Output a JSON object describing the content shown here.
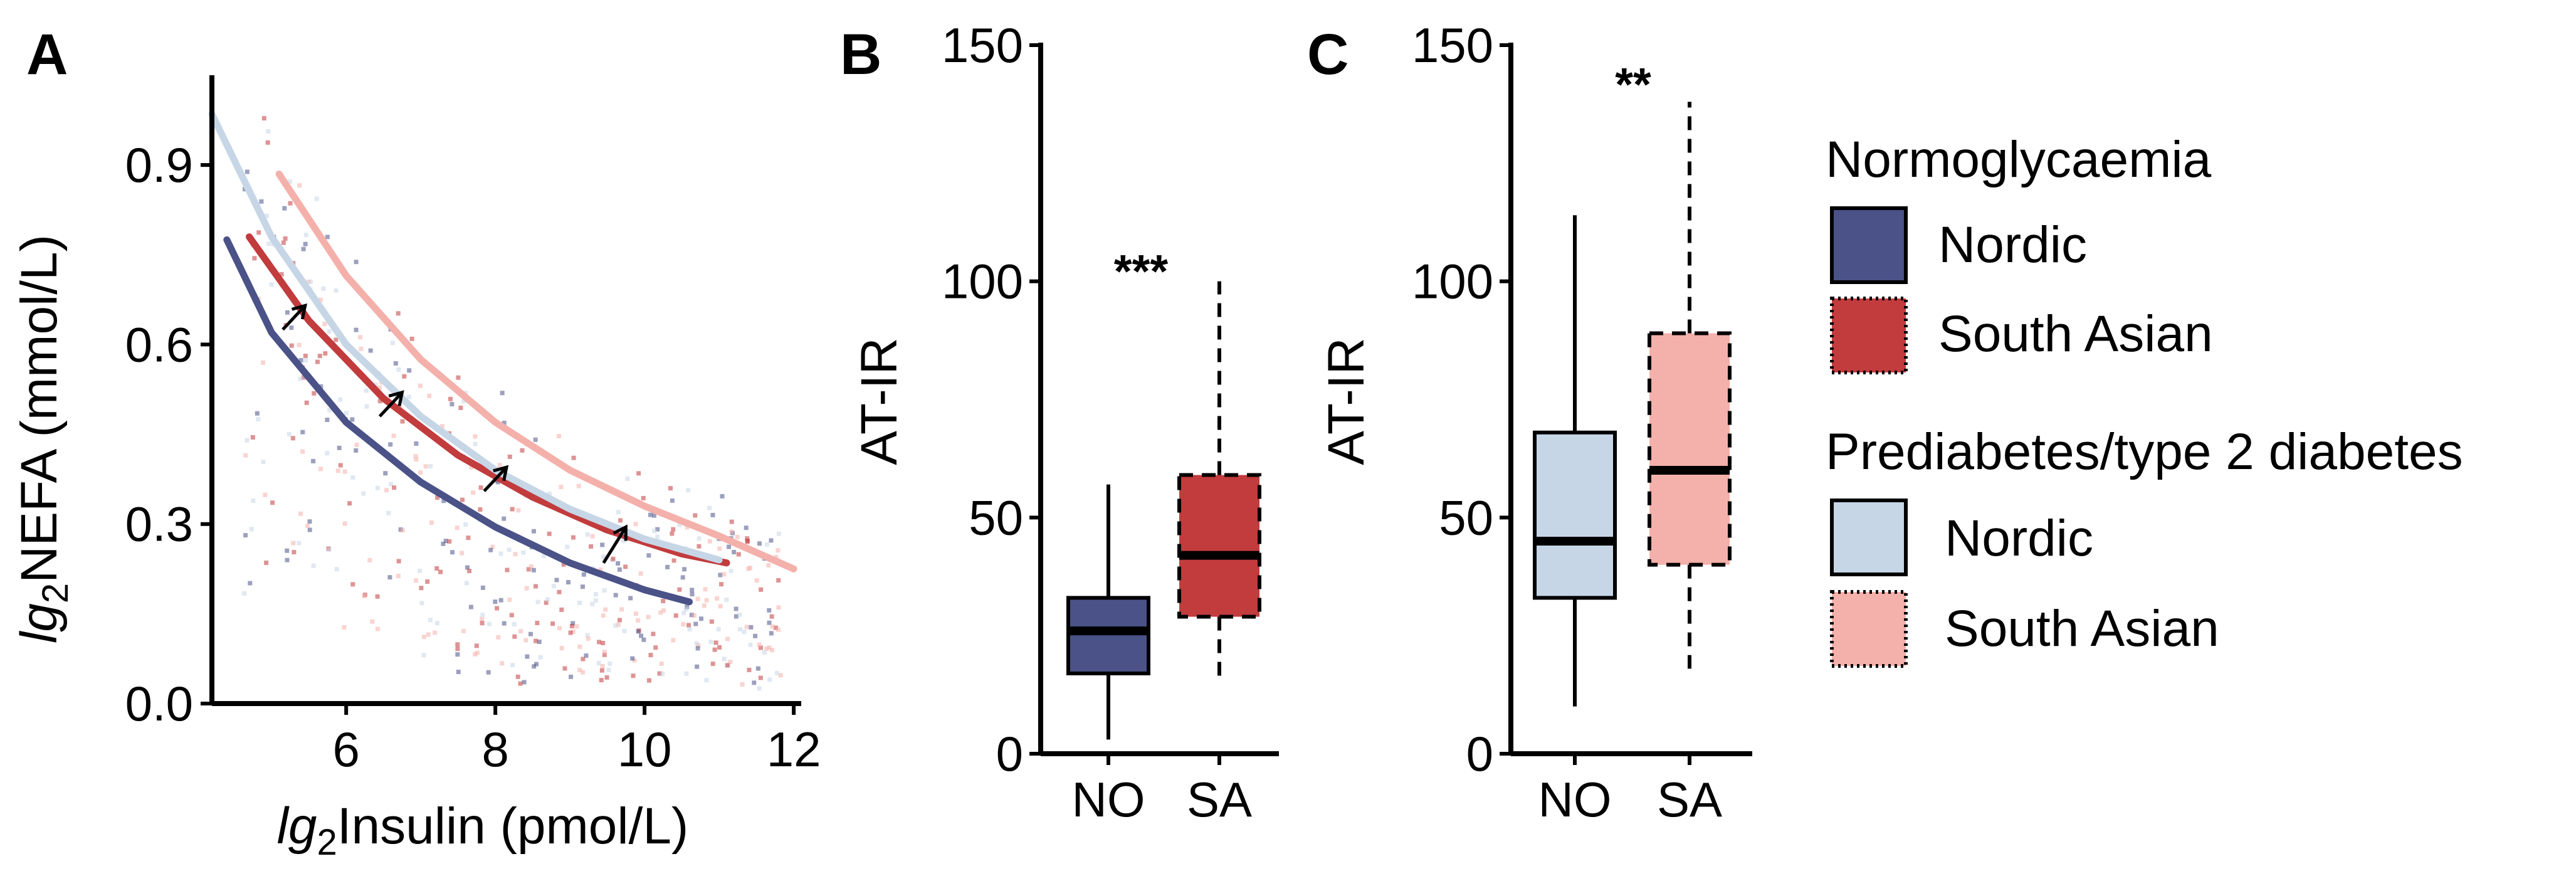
{
  "colors": {
    "nordic_normo": "#4a5288",
    "south_asian_normo": "#c23b3d",
    "nordic_prediabetes": "#c6d6e6",
    "south_asian_prediabetes": "#f4b0aa"
  },
  "chart_data": [
    {
      "panel": "A",
      "type": "scatter",
      "xlabel_prefix": "lg",
      "xlabel_sub": "2",
      "xlabel_main": "Insulin (pmol/L)",
      "ylabel_prefix": "lg",
      "ylabel_sub": "2",
      "ylabel_main": "NEFA (mmol/L)",
      "xlim": [
        4.2,
        12.1
      ],
      "ylim": [
        0.0,
        1.05
      ],
      "xticks": [
        6,
        8,
        10,
        12
      ],
      "xtick_labels": [
        "6",
        "8",
        "10",
        "12"
      ],
      "yticks": [
        0.0,
        0.3,
        0.6,
        0.9
      ],
      "ytick_labels": [
        "0.0",
        "0.3",
        "0.6",
        "0.9"
      ],
      "series": [
        {
          "name": "Normoglycaemia Nordic",
          "style": "curve",
          "color_key": "nordic_normo",
          "x": [
            4.4,
            5.0,
            6.0,
            7.0,
            8.0,
            9.0,
            10.0,
            10.6
          ],
          "y": [
            0.775,
            0.62,
            0.47,
            0.37,
            0.295,
            0.235,
            0.19,
            0.17
          ]
        },
        {
          "name": "Normoglycaemia South Asian",
          "style": "curve",
          "color_key": "south_asian_normo",
          "x": [
            4.7,
            5.5,
            6.5,
            7.5,
            8.5,
            9.5,
            10.5,
            11.1
          ],
          "y": [
            0.78,
            0.64,
            0.51,
            0.415,
            0.345,
            0.29,
            0.25,
            0.235
          ]
        },
        {
          "name": "Prediabetes/type 2 diabetes Nordic",
          "style": "curve",
          "color_key": "nordic_prediabetes",
          "x": [
            4.2,
            5.0,
            6.0,
            7.0,
            8.0,
            9.0,
            10.0,
            11.0
          ],
          "y": [
            0.985,
            0.78,
            0.6,
            0.48,
            0.39,
            0.325,
            0.275,
            0.24
          ]
        },
        {
          "name": "Prediabetes/type 2 diabetes South Asian",
          "style": "curve",
          "color_key": "south_asian_prediabetes",
          "x": [
            5.1,
            6.0,
            7.0,
            8.0,
            9.0,
            10.0,
            11.0,
            12.0
          ],
          "y": [
            0.885,
            0.715,
            0.575,
            0.47,
            0.39,
            0.33,
            0.28,
            0.225
          ]
        }
      ],
      "arrows": [
        {
          "from": [
            5.15,
            0.625
          ],
          "to": [
            5.45,
            0.665
          ]
        },
        {
          "from": [
            6.45,
            0.48
          ],
          "to": [
            6.75,
            0.52
          ]
        },
        {
          "from": [
            7.85,
            0.355
          ],
          "to": [
            8.15,
            0.395
          ]
        },
        {
          "from": [
            9.45,
            0.235
          ],
          "to": [
            9.75,
            0.295
          ]
        }
      ]
    },
    {
      "panel": "B",
      "type": "box",
      "ylabel": "AT-IR",
      "ylim": [
        0,
        150
      ],
      "yticks": [
        0,
        50,
        100,
        150
      ],
      "ytick_labels": [
        "0",
        "50",
        "100",
        "150"
      ],
      "categories": [
        "NO",
        "SA"
      ],
      "boxes": [
        {
          "category": "NO",
          "color_key": "nordic_normo",
          "dashed": false,
          "whisker_low": 3,
          "q1": 17,
          "median": 26,
          "q3": 33,
          "whisker_high": 57
        },
        {
          "category": "SA",
          "color_key": "south_asian_normo",
          "dashed": true,
          "whisker_low": 15,
          "q1": 29,
          "median": 42,
          "q3": 59,
          "whisker_high": 100
        }
      ],
      "significance": "***"
    },
    {
      "panel": "C",
      "type": "box",
      "ylabel": "AT-IR",
      "ylim": [
        0,
        150
      ],
      "yticks": [
        0,
        50,
        100,
        150
      ],
      "ytick_labels": [
        "0",
        "50",
        "100",
        "150"
      ],
      "categories": [
        "NO",
        "SA"
      ],
      "boxes": [
        {
          "category": "NO",
          "color_key": "nordic_prediabetes",
          "dashed": false,
          "whisker_low": 10,
          "q1": 33,
          "median": 45,
          "q3": 68,
          "whisker_high": 114
        },
        {
          "category": "SA",
          "color_key": "south_asian_prediabetes",
          "dashed": true,
          "whisker_low": 18,
          "q1": 40,
          "median": 60,
          "q3": 89,
          "whisker_high": 138
        }
      ],
      "significance": "**"
    }
  ],
  "legend": {
    "groups": [
      {
        "title": "Normoglycaemia",
        "items": [
          {
            "label": "Nordic",
            "color_key": "nordic_normo",
            "dotted": false
          },
          {
            "label": "South Asian",
            "color_key": "south_asian_normo",
            "dotted": true
          }
        ]
      },
      {
        "title": "Prediabetes/type 2 diabetes",
        "items": [
          {
            "label": "Nordic",
            "color_key": "nordic_prediabetes",
            "dotted": false
          },
          {
            "label": "South Asian",
            "color_key": "south_asian_prediabetes",
            "dotted": true
          }
        ]
      }
    ]
  }
}
